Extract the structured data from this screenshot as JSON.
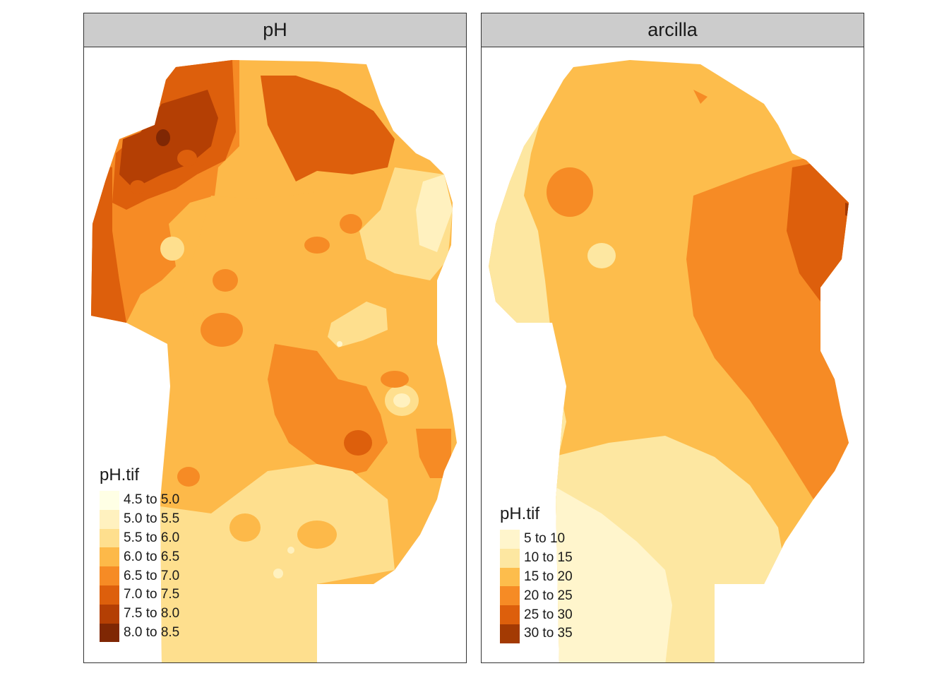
{
  "panels": [
    {
      "title": "pH",
      "legend": {
        "title": "pH.tif",
        "items": [
          {
            "label": "4.5 to 5.0",
            "color": "#ffffe5"
          },
          {
            "label": "5.0 to 5.5",
            "color": "#fff1bf"
          },
          {
            "label": "5.5 to 6.0",
            "color": "#fedf8e"
          },
          {
            "label": "6.0 to 6.5",
            "color": "#fdb949"
          },
          {
            "label": "6.5 to 7.0",
            "color": "#f68b25"
          },
          {
            "label": "7.0 to 7.5",
            "color": "#dd5f0c"
          },
          {
            "label": "7.5 to 8.0",
            "color": "#b43f04"
          },
          {
            "label": "8.0 to 8.5",
            "color": "#7f2704"
          }
        ]
      }
    },
    {
      "title": "arcilla",
      "legend": {
        "title": "pH.tif",
        "items": [
          {
            "label": "5 to 10",
            "color": "#fff5cc"
          },
          {
            "label": "10 to 15",
            "color": "#fde7a1"
          },
          {
            "label": "15 to 20",
            "color": "#fdbd4c"
          },
          {
            "label": "20 to 25",
            "color": "#f68b25"
          },
          {
            "label": "25 to 30",
            "color": "#dd5f0c"
          },
          {
            "label": "30 to 35",
            "color": "#a33a03"
          }
        ]
      }
    }
  ]
}
